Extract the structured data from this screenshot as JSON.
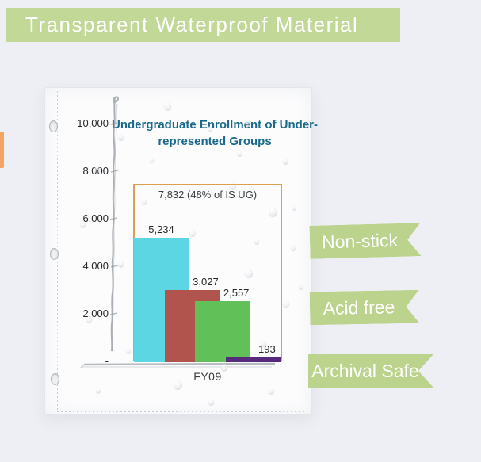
{
  "banner": {
    "label": "Transparent Waterproof Material"
  },
  "ribbons": [
    {
      "label": "Non-stick"
    },
    {
      "label": "Acid free"
    },
    {
      "label": "Archival Safe"
    }
  ],
  "colors": {
    "banner_green": "#c1d897",
    "ribbon_green": "#bcd38d",
    "annotation_box_orange": "#daa050",
    "title_teal": "#1a698c",
    "axis_gray": "#959a9e"
  },
  "chart_data": {
    "type": "bar",
    "title": "Undergraduate Enrollment of Under-represented Groups",
    "categories": [
      "FY09"
    ],
    "values": [
      5234,
      3027,
      2557,
      193
    ],
    "value_labels": [
      "5,234",
      "3,027",
      "2,557",
      "193"
    ],
    "bar_colors": [
      "#5cd6e2",
      "#b2544e",
      "#62c059",
      "#582a7e"
    ],
    "annotation": {
      "text": "7,832 (48% of IS UG)",
      "box_color": "#daa050"
    },
    "xlabel": "FY09",
    "ylabel": "",
    "ylim": [
      0,
      10000
    ],
    "y_ticks": [
      {
        "label": "10,000",
        "value": 10000
      },
      {
        "label": "8,000",
        "value": 8000
      },
      {
        "label": "6,000",
        "value": 6000
      },
      {
        "label": "4,000",
        "value": 4000
      },
      {
        "label": "2,000",
        "value": 2000
      },
      {
        "label": "-",
        "value": 0
      }
    ],
    "grid": false,
    "legend": false
  }
}
